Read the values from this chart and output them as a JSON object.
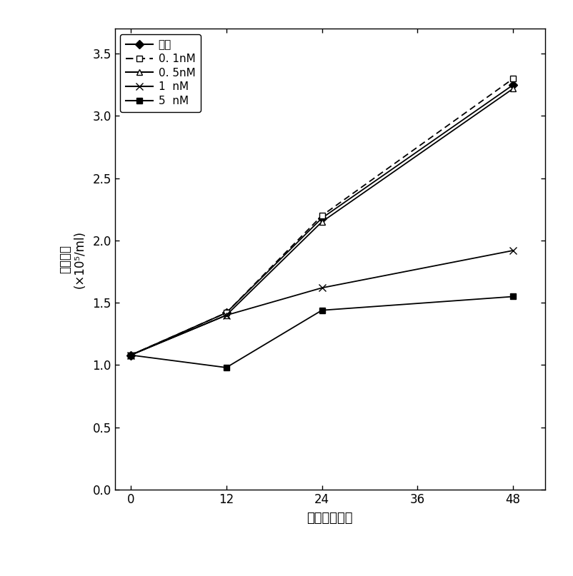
{
  "x": [
    0,
    12,
    24,
    48
  ],
  "series": [
    {
      "label": "对照",
      "y": [
        1.08,
        1.42,
        2.18,
        3.25
      ],
      "linestyle": "-",
      "marker": "D",
      "markersize": 6,
      "linewidth": 1.3,
      "markerfacecolor": "black"
    },
    {
      "label": "0. 1nM",
      "y": [
        1.08,
        1.42,
        2.2,
        3.3
      ],
      "linestyle": "--",
      "marker": "s",
      "markersize": 6,
      "linewidth": 1.3,
      "markerfacecolor": "white"
    },
    {
      "label": "0. 5nM",
      "y": [
        1.08,
        1.4,
        2.15,
        3.22
      ],
      "linestyle": "-",
      "marker": "^",
      "markersize": 6,
      "linewidth": 1.3,
      "markerfacecolor": "white"
    },
    {
      "label": "1  nM",
      "y": [
        1.08,
        1.4,
        1.62,
        1.92
      ],
      "linestyle": "-",
      "marker": "x",
      "markersize": 7,
      "linewidth": 1.3,
      "markerfacecolor": "black"
    },
    {
      "label": "5  nM",
      "y": [
        1.08,
        0.98,
        1.44,
        1.55
      ],
      "linestyle": "-",
      "marker": "s",
      "markersize": 6,
      "linewidth": 1.3,
      "markerfacecolor": "black"
    }
  ],
  "xlabel": "时间（小时）",
  "ylabel_line1": "活细胞数",
  "ylabel_line2": "(×10⁵/ml)",
  "xlim": [
    -2,
    52
  ],
  "ylim": [
    0.0,
    3.7
  ],
  "xticks": [
    0,
    12,
    24,
    36,
    48
  ],
  "yticks": [
    0.0,
    0.5,
    1.0,
    1.5,
    2.0,
    2.5,
    3.0,
    3.5
  ],
  "ytick_labels": [
    "0.0",
    "0.5",
    "1.0",
    "1.5",
    "2.0",
    "2.5",
    "3.0",
    "3.5"
  ],
  "background_color": "#ffffff",
  "figsize": [
    8.03,
    8.07
  ],
  "dpi": 100
}
